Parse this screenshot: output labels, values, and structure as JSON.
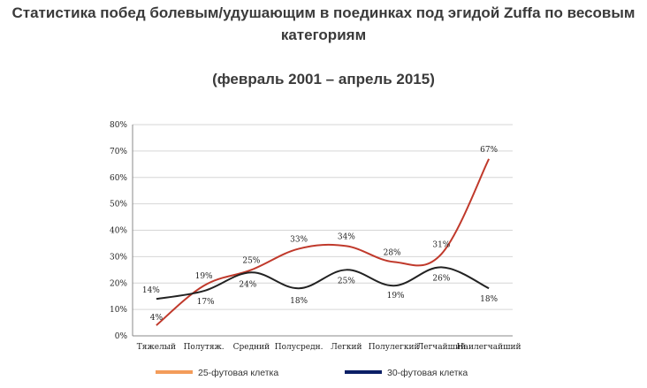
{
  "title": "Статистика побед болевым/удушающим в поединках под эгидой Zuffa по весовым категориям",
  "subtitle": "(февраль 2001 – апрель 2015)",
  "chart_data": {
    "type": "line",
    "categories": [
      "Тяжелый",
      "Полутяж.",
      "Средний",
      "Полусредн.",
      "Легкий",
      "Полулегкий",
      "Легчайший",
      "Наилегчайший"
    ],
    "series": [
      {
        "name": "25-футовая клетка",
        "values": [
          4,
          19,
          25,
          33,
          34,
          28,
          31,
          67
        ],
        "labels": [
          "4%",
          "19%",
          "25%",
          "33%",
          "34%",
          "28%",
          "31%",
          "67%"
        ],
        "color": "#c0392b"
      },
      {
        "name": "30-футовая клетка",
        "values": [
          14,
          17,
          24,
          18,
          25,
          19,
          26,
          18
        ],
        "labels": [
          "14%",
          "17%",
          "24%",
          "18%",
          "25%",
          "19%",
          "26%",
          "18%"
        ],
        "color": "#222222"
      }
    ],
    "yticks": [
      "0%",
      "10%",
      "20%",
      "30%",
      "40%",
      "50%",
      "60%",
      "70%",
      "80%"
    ],
    "ylim": [
      0,
      80
    ],
    "grid": true,
    "legend_position": "bottom",
    "legend_colors": [
      "#f39c5a",
      "#0b1f66"
    ]
  }
}
